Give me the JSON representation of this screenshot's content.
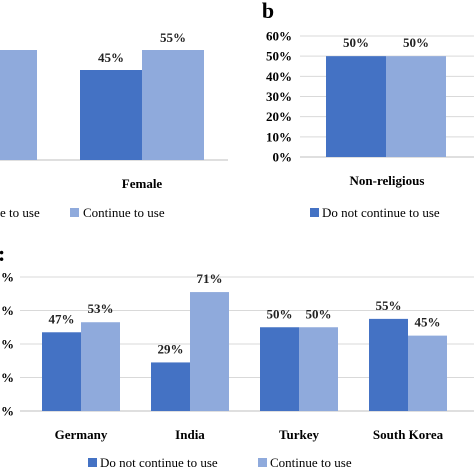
{
  "colors": {
    "do_not_continue": "#4472C4",
    "continue": "#8FAADC",
    "grid": "#d9d9d9",
    "axis": "#bfbfbf"
  },
  "chart_data": [
    {
      "panel": "",
      "type": "bar",
      "categories": [
        "",
        "Female"
      ],
      "series": [
        {
          "name": "Do not continue to use",
          "values": [
            null,
            45
          ]
        },
        {
          "name": "Continue to use",
          "values": [
            55,
            55
          ]
        }
      ],
      "value_labels": [
        {
          "series": 1,
          "category": 0,
          "text": "%"
        },
        {
          "series": 0,
          "category": 1,
          "text": "45%"
        },
        {
          "series": 1,
          "category": 1,
          "text": "55%"
        }
      ],
      "legend": {
        "position": "bottom",
        "entries": [
          "Do not continue to use",
          "Continue to use"
        ],
        "visible_texts": [
          "e to use",
          "Continue to use"
        ]
      }
    },
    {
      "panel": "b",
      "type": "bar",
      "categories": [
        "Non-religious"
      ],
      "series": [
        {
          "name": "Do not continue to use",
          "values": [
            50
          ]
        },
        {
          "name": "Continue to use",
          "values": [
            50
          ]
        }
      ],
      "value_labels": [
        {
          "series": 0,
          "category": 0,
          "text": "50%"
        },
        {
          "series": 1,
          "category": 0,
          "text": "50%"
        }
      ],
      "ylim": [
        0,
        60
      ],
      "yticks": [
        "0%",
        "10%",
        "20%",
        "30%",
        "40%",
        "50%",
        "60%"
      ],
      "legend": {
        "position": "bottom",
        "entries": [
          "Do not continue to use"
        ]
      }
    },
    {
      "panel": "",
      "type": "bar",
      "categories": [
        "Germany",
        "India",
        "Turkey",
        "South Korea"
      ],
      "series": [
        {
          "name": "Do not continue to use",
          "values": [
            47,
            29,
            50,
            55
          ]
        },
        {
          "name": "Continue to use",
          "values": [
            53,
            71,
            50,
            45
          ]
        }
      ],
      "value_labels": [
        {
          "series": 0,
          "category": 0,
          "text": "47%"
        },
        {
          "series": 1,
          "category": 0,
          "text": "53%"
        },
        {
          "series": 0,
          "category": 1,
          "text": "29%"
        },
        {
          "series": 1,
          "category": 1,
          "text": "71%"
        },
        {
          "series": 0,
          "category": 2,
          "text": "50%"
        },
        {
          "series": 1,
          "category": 2,
          "text": "50%"
        },
        {
          "series": 0,
          "category": 3,
          "text": "55%"
        },
        {
          "series": 1,
          "category": 3,
          "text": "45%"
        }
      ],
      "ylim": [
        0,
        80
      ],
      "yticks": [
        "%",
        "%",
        "%",
        "%",
        "%"
      ],
      "legend": {
        "position": "bottom",
        "entries": [
          "Do not continue to use",
          "Continue to use"
        ]
      }
    }
  ]
}
